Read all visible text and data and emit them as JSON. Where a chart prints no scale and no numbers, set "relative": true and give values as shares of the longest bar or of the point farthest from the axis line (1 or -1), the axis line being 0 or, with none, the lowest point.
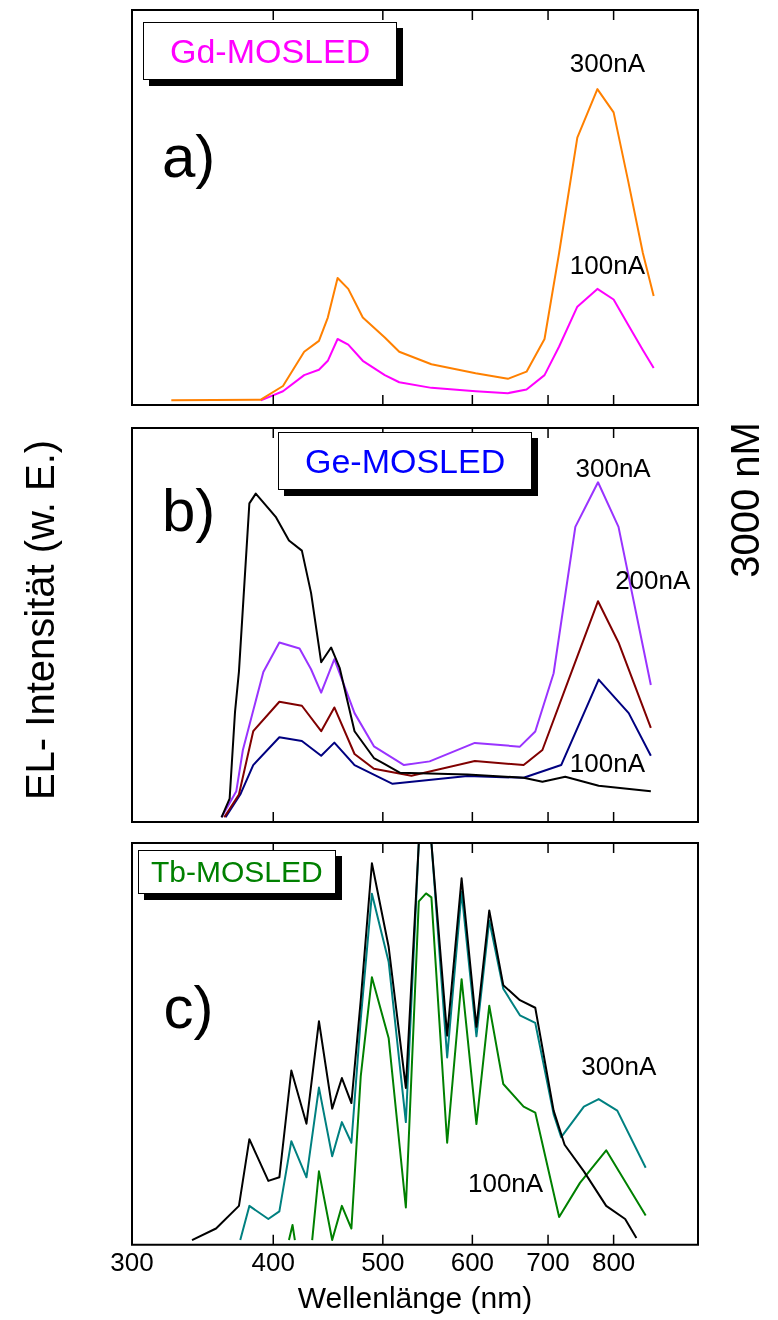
{
  "chart_data": [
    {
      "type": "line",
      "title": "Gd-MOSLED",
      "relative": true,
      "log": "x",
      "xlim": [
        300,
        950
      ],
      "xticks": [
        300,
        400,
        500,
        600,
        700,
        800
      ],
      "tick_labels": false,
      "ylabel": "EL- Intensität (w. E.)",
      "annotations": [
        "a)",
        "300nA",
        "100nA"
      ],
      "series": [
        {
          "color": "#ff8000",
          "x": [
            325,
            390,
            408,
            426,
            439,
            447,
            456,
            466,
            480,
            502,
            517,
            552,
            604,
            645,
            670,
            695,
            716,
            743,
            774,
            800,
            824,
            849,
            868
          ],
          "values": [
            0,
            0.002,
            0.046,
            0.156,
            0.191,
            0.266,
            0.393,
            0.358,
            0.266,
            0.202,
            0.156,
            0.116,
            0.087,
            0.069,
            0.092,
            0.197,
            0.474,
            0.844,
            1,
            0.925,
            0.705,
            0.474,
            0.335
          ]
        },
        {
          "color": "#ff00ff",
          "x": [
            390,
            408,
            426,
            439,
            447,
            456,
            466,
            480,
            502,
            517,
            552,
            604,
            645,
            670,
            695,
            716,
            743,
            774,
            800,
            824,
            849,
            868
          ],
          "values": [
            0,
            0.029,
            0.081,
            0.098,
            0.127,
            0.197,
            0.179,
            0.127,
            0.081,
            0.058,
            0.04,
            0.029,
            0.023,
            0.035,
            0.081,
            0.173,
            0.301,
            0.358,
            0.324,
            0.243,
            0.162,
            0.104
          ]
        }
      ]
    },
    {
      "type": "line",
      "title": "Ge-MOSLED",
      "relative": true,
      "log": "x",
      "xlim": [
        300,
        950
      ],
      "xticks": [
        300,
        400,
        500,
        600,
        700,
        800
      ],
      "tick_labels": false,
      "y2label": "3000 nM",
      "annotations": [
        "b)",
        "300nA",
        "200nA",
        "100nA"
      ],
      "series": [
        {
          "color": "#000000",
          "x": [
            360,
            366,
            370,
            373,
            381,
            386,
            402,
            413,
            424,
            432,
            441,
            450,
            458,
            472,
            491,
            518,
            594,
            666,
            692,
            725,
            776,
            863
          ],
          "values": [
            0,
            0.056,
            0.313,
            0.435,
            0.937,
            0.966,
            0.897,
            0.826,
            0.796,
            0.67,
            0.463,
            0.507,
            0.445,
            0.257,
            0.177,
            0.133,
            0.128,
            0.118,
            0.106,
            0.121,
            0.094,
            0.078
          ]
        },
        {
          "color": "#9933ff",
          "x": [
            360,
            371,
            376,
            392,
            405,
            422,
            432,
            441,
            453,
            472,
            491,
            522,
            550,
            603,
            661,
            682,
            708,
            740,
            775,
            808,
            863
          ],
          "values": [
            0,
            0.078,
            0.201,
            0.434,
            0.522,
            0.504,
            0.442,
            0.372,
            0.472,
            0.311,
            0.212,
            0.156,
            0.167,
            0.222,
            0.211,
            0.256,
            0.43,
            0.867,
            1,
            0.867,
            0.395
          ]
        },
        {
          "color": "#800000",
          "x": [
            362,
            373,
            384,
            405,
            424,
            441,
            453,
            472,
            491,
            530,
            603,
            666,
            692,
            730,
            775,
            808,
            863
          ],
          "values": [
            0,
            0.068,
            0.257,
            0.345,
            0.333,
            0.257,
            0.328,
            0.189,
            0.145,
            0.124,
            0.168,
            0.156,
            0.201,
            0.411,
            0.645,
            0.522,
            0.267
          ]
        },
        {
          "color": "#000080",
          "x": [
            363,
            374,
            384,
            405,
            424,
            441,
            453,
            472,
            510,
            594,
            666,
            719,
            776,
            825,
            863
          ],
          "values": [
            0,
            0.068,
            0.156,
            0.239,
            0.228,
            0.184,
            0.223,
            0.156,
            0.1,
            0.123,
            0.118,
            0.156,
            0.411,
            0.311,
            0.184
          ]
        }
      ]
    },
    {
      "type": "line",
      "title": "Tb-MOSLED",
      "relative": true,
      "log": "x",
      "xlim": [
        300,
        950
      ],
      "xticks": [
        300,
        400,
        500,
        600,
        700,
        800
      ],
      "tick_labels": "x",
      "xlabel": "Wellenlänge (nm)",
      "annotations": [
        "c)",
        "300nA",
        "100nA"
      ],
      "series": [
        {
          "color": "#000000",
          "x": [
            339,
            356,
            373,
            381,
            396,
            405,
            415,
            428,
            439,
            451,
            460,
            469,
            478,
            489,
            506,
            524,
            538,
            552,
            570,
            587,
            605,
            621,
            639,
            661,
            682,
            708,
            724,
            753,
            788,
            819,
            838
          ],
          "values": [
            0,
            0.029,
            0.086,
            0.254,
            0.149,
            0.158,
            0.427,
            0.293,
            0.551,
            0.331,
            0.408,
            0.345,
            0.604,
            0.949,
            0.738,
            0.383,
            1,
            1,
            0.515,
            0.911,
            0.537,
            0.83,
            0.642,
            0.604,
            0.585,
            0.326,
            0.24,
            0.173,
            0.086,
            0.053,
            0.005
          ]
        },
        {
          "color": "#008080",
          "x": [
            374,
            381,
            396,
            405,
            415,
            428,
            439,
            451,
            460,
            469,
            478,
            489,
            506,
            524,
            538,
            552,
            570,
            587,
            605,
            621,
            639,
            661,
            682,
            708,
            719,
            753,
            776,
            806,
            854
          ],
          "values": [
            0,
            0.086,
            0.053,
            0.072,
            0.249,
            0.158,
            0.384,
            0.211,
            0.297,
            0.245,
            0.556,
            0.872,
            0.7,
            0.297,
            1,
            1,
            0.46,
            0.877,
            0.513,
            0.805,
            0.633,
            0.566,
            0.547,
            0.317,
            0.259,
            0.336,
            0.355,
            0.326,
            0.182
          ]
        },
        {
          "color": "#008000",
          "x": [
            413,
            416,
            418,
            425,
            433,
            439,
            451,
            460,
            469,
            478,
            489,
            506,
            524,
            538,
            546,
            552,
            570,
            587,
            605,
            621,
            639,
            666,
            682,
            716,
            747,
            788,
            854
          ],
          "values": [
            0,
            0.038,
            0,
            null,
            0,
            0.173,
            0,
            0.086,
            0.029,
            0.412,
            0.662,
            0.508,
            0.082,
            0.853,
            0.873,
            0.863,
            0.245,
            0.657,
            0.292,
            0.59,
            0.393,
            0.336,
            0.321,
            0.058,
            0.144,
            0.226,
            0.062
          ]
        }
      ]
    }
  ]
}
